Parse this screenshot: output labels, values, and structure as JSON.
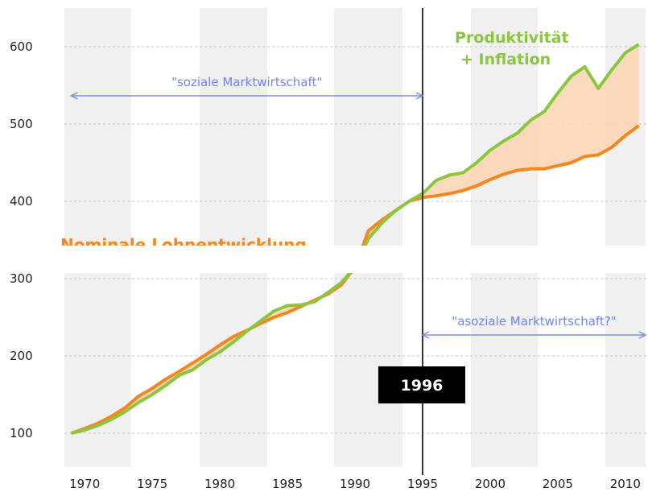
{
  "chart_data": {
    "type": "line",
    "x": [
      1969,
      1970,
      1971,
      1972,
      1973,
      1974,
      1975,
      1976,
      1977,
      1978,
      1979,
      1980,
      1981,
      1982,
      1983,
      1984,
      1985,
      1986,
      1987,
      1988,
      1989,
      1990,
      1991,
      1992,
      1993,
      1994,
      1995,
      1996,
      1997,
      1998,
      1999,
      2000,
      2001,
      2002,
      2003,
      2004,
      2005,
      2006,
      2007,
      2008,
      2009,
      2010,
      2011
    ],
    "series": [
      {
        "name": "Nominale Lohnentwicklung",
        "color": "#f7861e",
        "values": [
          100,
          106,
          113,
          122,
          133,
          148,
          158,
          170,
          180,
          191,
          202,
          214,
          225,
          233,
          242,
          250,
          256,
          264,
          272,
          280,
          292,
          315,
          362,
          376,
          388,
          400,
          405,
          407,
          410,
          414,
          420,
          428,
          435,
          440,
          442,
          442,
          446,
          450,
          458,
          460,
          470,
          485,
          498
        ]
      },
      {
        "name": "Produktivität + Inflation",
        "color": "#8cc63f",
        "values": [
          100,
          104,
          110,
          118,
          128,
          140,
          150,
          162,
          175,
          182,
          195,
          205,
          218,
          232,
          245,
          258,
          265,
          266,
          270,
          282,
          295,
          315,
          352,
          372,
          388,
          400,
          410,
          427,
          434,
          437,
          450,
          466,
          478,
          488,
          505,
          516,
          540,
          562,
          574,
          546,
          570,
          592,
          603
        ]
      }
    ],
    "xlim": [
      1968.5,
      2011.5
    ],
    "xticks": [
      1970,
      1975,
      1980,
      1985,
      1990,
      1995,
      2000,
      2005,
      2010
    ],
    "ylim": [
      80,
      640
    ],
    "yticks": [
      100,
      200,
      300,
      400,
      500,
      600
    ],
    "grid": true,
    "divider": {
      "x": 1995,
      "label": "1996"
    },
    "eras": [
      {
        "label": "\"soziale Marktwirtschaft\"",
        "from": 1969,
        "to": 1995
      },
      {
        "label": "\"asoziale Marktwirtschaft?\"",
        "from": 1995,
        "to": 2011.5
      }
    ]
  }
}
